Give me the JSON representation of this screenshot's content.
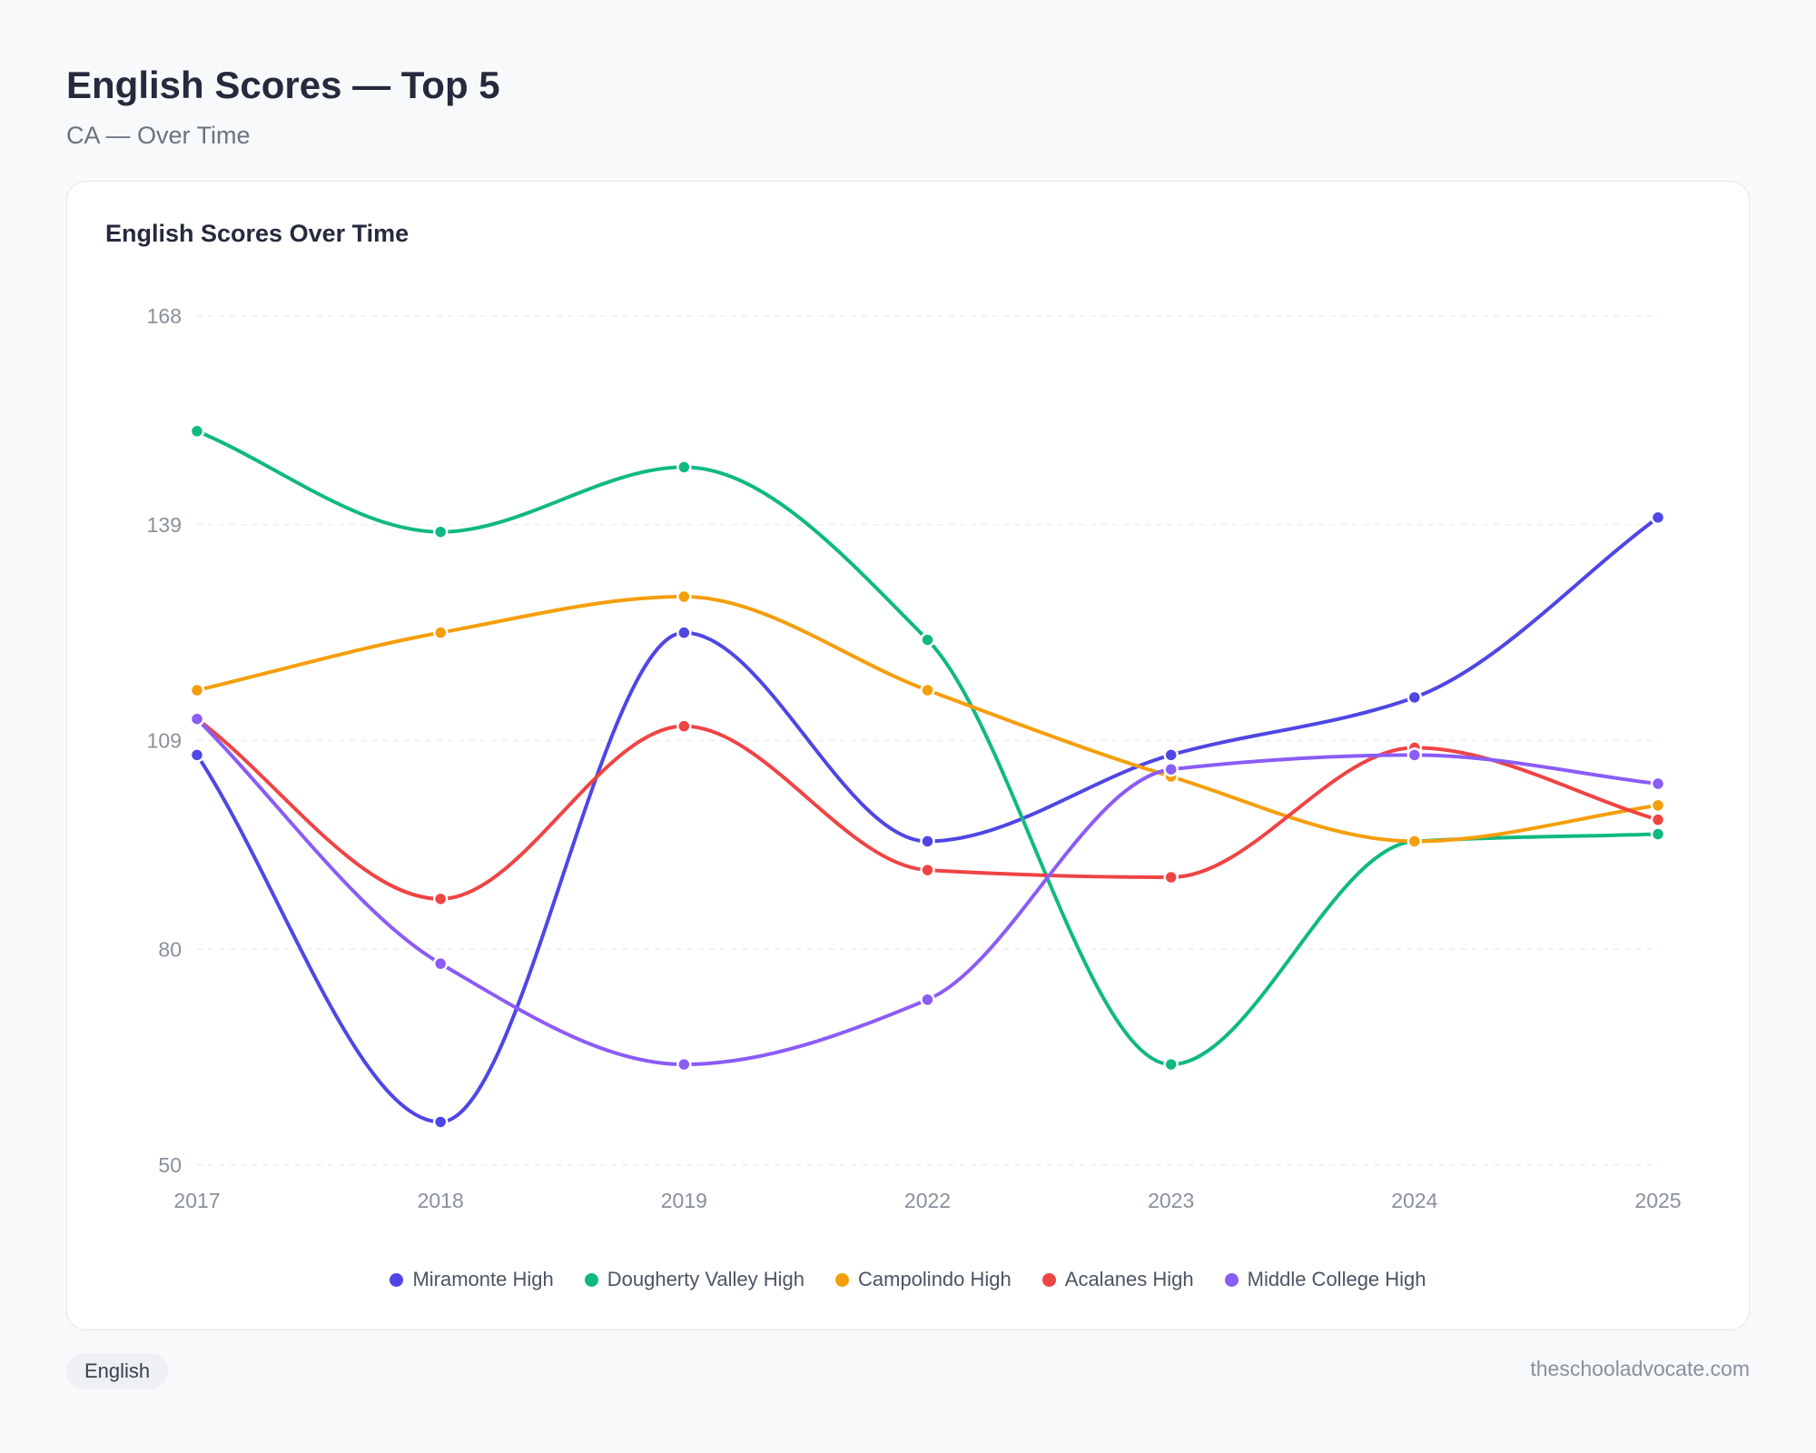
{
  "header": {
    "title": "English Scores — Top 5",
    "subtitle": "CA — Over Time"
  },
  "card": {
    "title": "English Scores Over Time"
  },
  "footer": {
    "tag": "English",
    "site": "theschooladvocate.com"
  },
  "chart_data": {
    "type": "line",
    "title": "English Scores Over Time",
    "categories": [
      "2017",
      "2018",
      "2019",
      "2022",
      "2023",
      "2024",
      "2025"
    ],
    "ylim": [
      50,
      168
    ],
    "yticks": [
      50,
      80,
      109,
      139,
      168
    ],
    "grid": true,
    "legend": "bottom",
    "series": [
      {
        "name": "Miramonte High",
        "color": "#4f46e5",
        "values": [
          107,
          56,
          124,
          95,
          107,
          115,
          140
        ]
      },
      {
        "name": "Dougherty Valley High",
        "color": "#10b981",
        "values": [
          152,
          138,
          147,
          123,
          64,
          95,
          96
        ]
      },
      {
        "name": "Campolindo High",
        "color": "#f59e0b",
        "values": [
          116,
          124,
          129,
          116,
          104,
          95,
          100
        ]
      },
      {
        "name": "Acalanes High",
        "color": "#ef4444",
        "values": [
          112,
          87,
          111,
          91,
          90,
          108,
          98
        ]
      },
      {
        "name": "Middle College High",
        "color": "#8b5cf6",
        "values": [
          112,
          78,
          64,
          73,
          105,
          107,
          103
        ]
      }
    ]
  }
}
